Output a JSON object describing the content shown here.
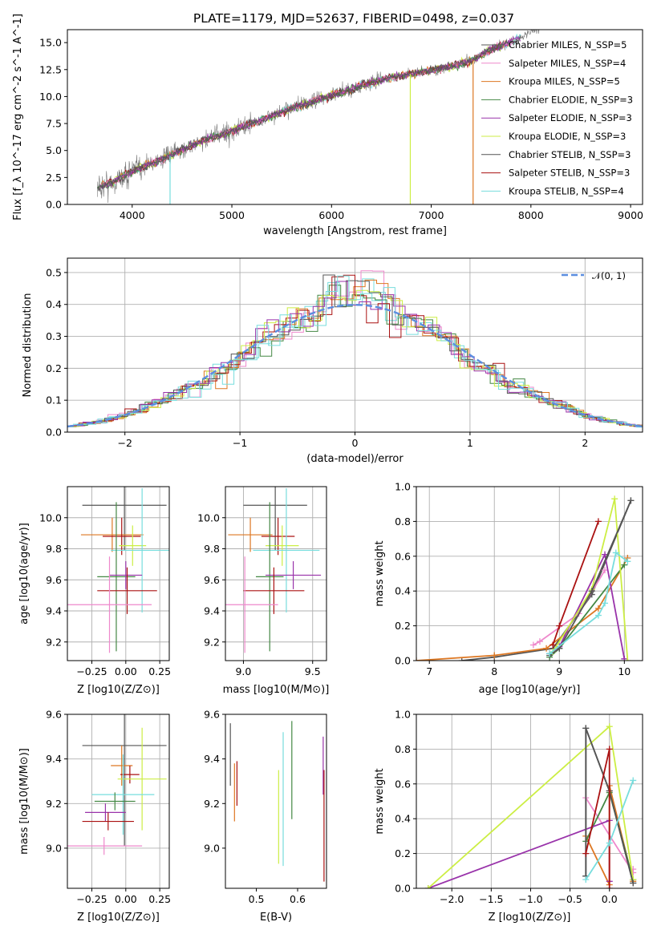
{
  "title": "PLATE=1179, MJD=52637, FIBERID=0498, z=0.037",
  "colors": {
    "chab_miles": "#555555",
    "salp_miles": "#ee88cc",
    "krou_miles": "#dd7722",
    "chab_elodie": "#448844",
    "salp_elodie": "#9933aa",
    "krou_elodie": "#ccee44",
    "chab_stelib": "#555555",
    "salp_stelib": "#aa1111",
    "krou_stelib": "#77dddd",
    "gauss": "#5b8ee0",
    "data": "#777777"
  },
  "chart_data": [
    {
      "type": "line",
      "panel": "spectrum",
      "title": "PLATE=1179, MJD=52637, FIBERID=0498, z=0.037",
      "xlabel": "wavelength [Angstrom, rest frame]",
      "ylabel": "Flux [f_λ 10^-17 erg cm^-2 s^-1 A^-1]",
      "xlim": [
        3350,
        9120
      ],
      "ylim": [
        0,
        16.2
      ],
      "xticks": [
        "4000",
        "5000",
        "6000",
        "7000",
        "8000",
        "9000"
      ],
      "yticks": [
        "0.0",
        "2.5",
        "5.0",
        "7.5",
        "10.0",
        "12.5",
        "15.0"
      ],
      "grid": false,
      "legend_position": "right",
      "continuum": {
        "x": [
          3650,
          3800,
          4000,
          4200,
          4400,
          4600,
          4800,
          5000,
          5200,
          5400,
          5600,
          5800,
          6000,
          6200,
          6400,
          6600,
          6800,
          7000,
          7200,
          7400,
          7600,
          7800,
          8000
        ],
        "y": [
          1.6,
          2.0,
          3.1,
          3.8,
          4.6,
          5.5,
          6.2,
          6.8,
          7.5,
          8.2,
          8.9,
          9.5,
          10.1,
          10.7,
          11.3,
          11.8,
          12.1,
          12.4,
          12.8,
          13.3,
          14.4,
          15.0,
          16.0
        ]
      },
      "series": [
        {
          "name": "Chabrier MILES, N_SSP=5"
        },
        {
          "name": "Salpeter MILES, N_SSP=4"
        },
        {
          "name": "Kroupa MILES, N_SSP=5"
        },
        {
          "name": "Chabrier ELODIE, N_SSP=3"
        },
        {
          "name": "Salpeter ELODIE, N_SSP=3"
        },
        {
          "name": "Kroupa ELODIE, N_SSP=3"
        },
        {
          "name": "Chabrier STELIB, N_SSP=3"
        },
        {
          "name": "Salpeter STELIB, N_SSP=3"
        },
        {
          "name": "Kroupa STELIB, N_SSP=4"
        }
      ]
    },
    {
      "type": "line",
      "panel": "residual-histogram",
      "xlabel": "(data-model)/error",
      "ylabel": "Normed distribution",
      "xlim": [
        -2.5,
        2.5
      ],
      "ylim": [
        0,
        0.545
      ],
      "xticks": [
        "−2",
        "−1",
        "0",
        "1",
        "2"
      ],
      "yticks": [
        "0.0",
        "0.1",
        "0.2",
        "0.3",
        "0.4",
        "0.5"
      ],
      "grid": true,
      "legend": "𝒩(0, 1)",
      "legend_position": "top-right",
      "bin_width": 0.1
    },
    {
      "type": "scatter",
      "panel": "age-vs-metallicity",
      "xlabel": "Z [log10(Z/Z⊙)]",
      "ylabel": "age [log10(age/yr)]",
      "xlim": [
        -0.43,
        0.32
      ],
      "ylim": [
        9.08,
        10.2
      ],
      "xticks": [
        "−0.25",
        "0.00",
        "0.25"
      ],
      "yticks": [
        "9.2",
        "9.4",
        "9.6",
        "9.8",
        "10.0"
      ],
      "grid": true,
      "points": [
        {
          "x": -0.01,
          "y": 10.08,
          "xerr": 0.31,
          "yerr": 0.29
        },
        {
          "x": -0.1,
          "y": 9.89,
          "xerr": 0.23,
          "yerr": 0.11
        },
        {
          "x": -0.03,
          "y": 9.88,
          "xerr": 0.14,
          "yerr": 0.12
        },
        {
          "x": 0.05,
          "y": 9.82,
          "xerr": 0.1,
          "yerr": 0.13
        },
        {
          "x": 0.12,
          "y": 9.79,
          "xerr": 0.23,
          "yerr": 0.4
        },
        {
          "x": -0.07,
          "y": 9.62,
          "xerr": 0.14,
          "yerr": 0.48
        },
        {
          "x": 0.0,
          "y": 9.63,
          "xerr": 0.12,
          "yerr": 0.09
        },
        {
          "x": 0.01,
          "y": 9.53,
          "xerr": 0.22,
          "yerr": 0.15
        },
        {
          "x": -0.12,
          "y": 9.44,
          "xerr": 0.31,
          "yerr": 0.31
        }
      ]
    },
    {
      "type": "scatter",
      "panel": "age-vs-mass",
      "xlabel": "mass [log10(M/M⊙)]",
      "ylabel": "",
      "xlim": [
        8.87,
        9.6
      ],
      "ylim": [
        9.08,
        10.2
      ],
      "xticks": [
        "9.0",
        "9.5"
      ],
      "yticks": [
        "9.2",
        "9.4",
        "9.6",
        "9.8",
        "10.0"
      ],
      "grid": true,
      "points": [
        {
          "x": 9.23,
          "y": 10.08,
          "xerr": 0.23,
          "yerr": 0.29
        },
        {
          "x": 9.05,
          "y": 9.89,
          "xerr": 0.16,
          "yerr": 0.11
        },
        {
          "x": 9.25,
          "y": 9.88,
          "xerr": 0.12,
          "yerr": 0.12
        },
        {
          "x": 9.28,
          "y": 9.82,
          "xerr": 0.12,
          "yerr": 0.13
        },
        {
          "x": 9.31,
          "y": 9.79,
          "xerr": 0.24,
          "yerr": 0.4
        },
        {
          "x": 9.19,
          "y": 9.62,
          "xerr": 0.1,
          "yerr": 0.48
        },
        {
          "x": 9.36,
          "y": 9.63,
          "xerr": 0.2,
          "yerr": 0.09
        },
        {
          "x": 9.22,
          "y": 9.53,
          "xerr": 0.22,
          "yerr": 0.15
        },
        {
          "x": 9.01,
          "y": 9.44,
          "xerr": 0.24,
          "yerr": 0.31
        }
      ]
    },
    {
      "type": "line",
      "panel": "mass-weight-vs-age",
      "xlabel": "age [log10(age/yr)]",
      "ylabel": "mass weight",
      "xlim": [
        6.8,
        10.28
      ],
      "ylim": [
        0,
        1.0
      ],
      "xticks": [
        "7",
        "8",
        "9",
        "10"
      ],
      "yticks": [
        "0.0",
        "0.2",
        "0.4",
        "0.6",
        "0.8",
        "1.0"
      ],
      "grid": true,
      "series": [
        {
          "x": [
            7.5,
            8.0,
            8.9,
            9.5,
            10.1
          ],
          "y": [
            0.0,
            0.02,
            0.07,
            0.38,
            0.92
          ]
        },
        {
          "x": [
            8.6,
            8.7,
            9.3,
            9.7
          ],
          "y": [
            0.09,
            0.11,
            0.27,
            0.52
          ]
        },
        {
          "x": [
            6.8,
            8.0,
            8.8,
            9.6,
            10.05
          ],
          "y": [
            0.0,
            0.03,
            0.07,
            0.3,
            0.59
          ]
        },
        {
          "x": [
            8.85,
            9.0,
            10.0
          ],
          "y": [
            0.02,
            0.07,
            0.55
          ]
        },
        {
          "x": [
            8.85,
            9.0,
            9.7,
            10.0
          ],
          "y": [
            0.04,
            0.08,
            0.61,
            0.01
          ]
        },
        {
          "x": [
            8.9,
            9.5,
            9.85,
            10.05
          ],
          "y": [
            0.05,
            0.41,
            0.93,
            0.0
          ]
        },
        {
          "x": [
            8.85,
            9.0,
            9.5,
            10.1
          ],
          "y": [
            0.03,
            0.07,
            0.4,
            0.92
          ]
        },
        {
          "x": [
            8.9,
            9.0,
            9.6
          ],
          "y": [
            0.09,
            0.2,
            0.8
          ]
        },
        {
          "x": [
            8.85,
            9.6,
            9.7,
            9.87,
            10.05
          ],
          "y": [
            0.04,
            0.26,
            0.33,
            0.62,
            0.57
          ]
        }
      ]
    },
    {
      "type": "scatter",
      "panel": "mass-vs-metallicity",
      "xlabel": "Z [log10(Z/Z⊙)]",
      "ylabel": "mass [log10(M/M⊙)]",
      "xlim": [
        -0.43,
        0.32
      ],
      "ylim": [
        8.82,
        9.6
      ],
      "xticks": [
        "−0.25",
        "0.00",
        "0.25"
      ],
      "yticks": [
        "9.0",
        "9.2",
        "9.4",
        "9.6"
      ],
      "grid": true,
      "points": [
        {
          "x": -0.01,
          "y": 9.46,
          "xerr": 0.31,
          "yerr": 0.45
        },
        {
          "x": -0.03,
          "y": 9.37,
          "xerr": 0.08,
          "yerr": 0.09
        },
        {
          "x": 0.03,
          "y": 9.33,
          "xerr": 0.07,
          "yerr": 0.04
        },
        {
          "x": 0.12,
          "y": 9.31,
          "xerr": 0.18,
          "yerr": 0.23
        },
        {
          "x": -0.02,
          "y": 9.24,
          "xerr": 0.23,
          "yerr": 0.18
        },
        {
          "x": -0.08,
          "y": 9.21,
          "xerr": 0.15,
          "yerr": 0.04
        },
        {
          "x": -0.15,
          "y": 9.16,
          "xerr": 0.15,
          "yerr": 0.04
        },
        {
          "x": -0.13,
          "y": 9.12,
          "xerr": 0.19,
          "yerr": 0.04
        },
        {
          "x": -0.16,
          "y": 9.01,
          "xerr": 0.28,
          "yerr": 0.04
        }
      ]
    },
    {
      "type": "scatter",
      "panel": "mass-vs-extinction",
      "xlabel": "E(B-V)",
      "ylabel": "",
      "xlim": [
        0.425,
        0.67
      ],
      "ylim": [
        8.82,
        9.6
      ],
      "xticks": [
        "0.5",
        "0.6"
      ],
      "yticks": [
        "9.0",
        "9.2",
        "9.4",
        "9.6"
      ],
      "grid": false,
      "points": [
        {
          "x": 0.437,
          "y": 9.42,
          "yerr": 0.14
        },
        {
          "x": 0.447,
          "y": 9.25,
          "yerr": 0.13
        },
        {
          "x": 0.453,
          "y": 9.29,
          "yerr": 0.1
        },
        {
          "x": 0.554,
          "y": 9.14,
          "yerr": 0.21
        },
        {
          "x": 0.565,
          "y": 9.22,
          "yerr": 0.3
        },
        {
          "x": 0.586,
          "y": 9.35,
          "yerr": 0.22
        },
        {
          "x": 0.662,
          "y": 9.37,
          "yerr": 0.13
        },
        {
          "x": 0.664,
          "y": 9.1,
          "yerr": 0.25
        }
      ]
    },
    {
      "type": "line",
      "panel": "mass-weight-vs-metallicity",
      "xlabel": "Z [log10(Z/Z⊙)]",
      "ylabel": "mass weight",
      "xlim": [
        -2.45,
        0.42
      ],
      "ylim": [
        0,
        1.0
      ],
      "xticks": [
        "−2.0",
        "−1.5",
        "−1.0",
        "−0.5",
        "0.0"
      ],
      "yticks": [
        "0.0",
        "0.2",
        "0.4",
        "0.6",
        "0.8",
        "1.0"
      ],
      "grid": true,
      "series": [
        {
          "x": [
            -0.3,
            -0.3,
            0.0,
            0.3
          ],
          "y": [
            0.07,
            0.92,
            0.56,
            0.03
          ]
        },
        {
          "x": [
            -0.3,
            0.3,
            0.3
          ],
          "y": [
            0.52,
            0.09,
            0.11
          ]
        },
        {
          "x": [
            -0.3,
            0.0,
            0.0,
            0.3
          ],
          "y": [
            0.3,
            0.02,
            0.59,
            0.04
          ]
        },
        {
          "x": [
            -0.3,
            0.0,
            0.3
          ],
          "y": [
            0.27,
            0.55,
            0.05
          ]
        },
        {
          "x": [
            -2.3,
            0.0,
            0.0
          ],
          "y": [
            0.0,
            0.39,
            0.04
          ]
        },
        {
          "x": [
            -2.3,
            0.0,
            0.3
          ],
          "y": [
            0.0,
            0.93,
            0.05
          ]
        },
        {
          "x": [
            -0.3,
            -0.3,
            0.0,
            0.3
          ],
          "y": [
            0.07,
            0.92,
            0.56,
            0.03
          ]
        },
        {
          "x": [
            -0.3,
            0.0,
            0.0
          ],
          "y": [
            0.2,
            0.8,
            0.0
          ]
        },
        {
          "x": [
            -0.3,
            0.0,
            0.3
          ],
          "y": [
            0.05,
            0.26,
            0.62
          ]
        }
      ]
    }
  ]
}
